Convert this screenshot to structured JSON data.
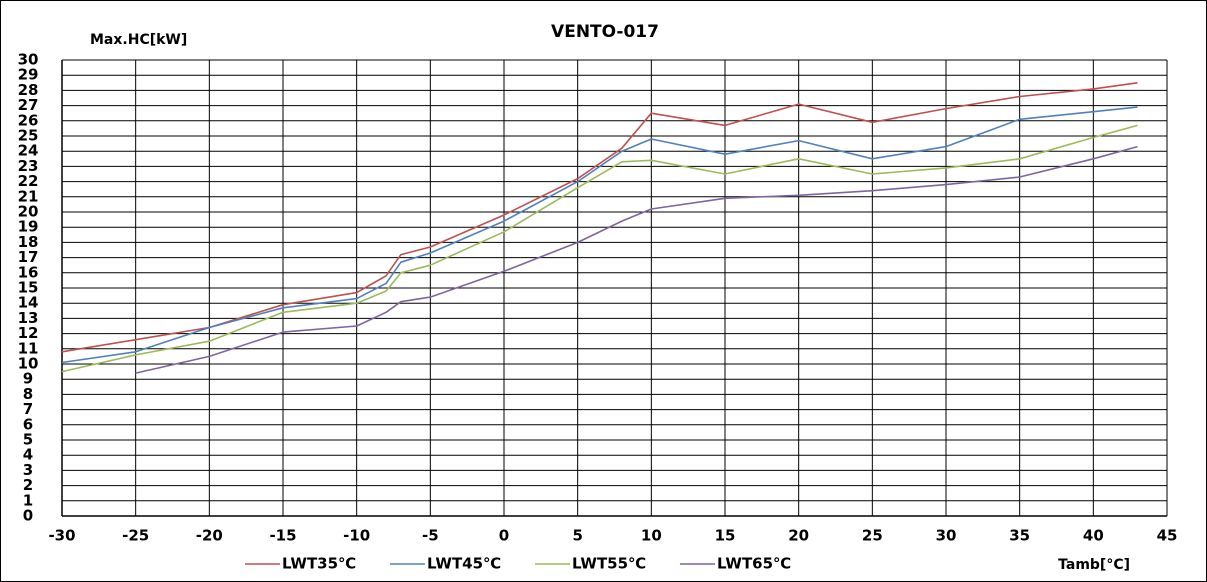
{
  "chart_data": {
    "type": "line",
    "title": "VENTO-017",
    "y_label": "Max.HC[kW]",
    "x_label": "Tamb[°C]",
    "x": [
      -30,
      -25,
      -20,
      -15,
      -10,
      -8,
      -7,
      -5,
      0,
      5,
      8,
      10,
      15,
      20,
      25,
      30,
      35,
      40,
      43
    ],
    "series": [
      {
        "name": "LWT35℃",
        "color": "#c0504d",
        "values": [
          10.8,
          11.6,
          12.4,
          13.9,
          14.7,
          15.8,
          17.2,
          17.7,
          19.8,
          22.2,
          24.2,
          26.5,
          25.7,
          27.1,
          25.9,
          26.8,
          27.6,
          28.1,
          28.5
        ]
      },
      {
        "name": "LWT45℃",
        "color": "#4f81bd",
        "values": [
          10.1,
          10.8,
          12.4,
          13.7,
          14.3,
          15.3,
          16.7,
          17.3,
          19.4,
          22.0,
          24.0,
          24.8,
          23.8,
          24.7,
          23.5,
          24.3,
          26.1,
          26.6,
          26.9
        ]
      },
      {
        "name": "LWT55℃",
        "color": "#9bbb59",
        "values": [
          9.5,
          10.6,
          11.5,
          13.4,
          14.0,
          14.8,
          16.0,
          16.5,
          18.7,
          21.6,
          23.3,
          23.4,
          22.5,
          23.5,
          22.5,
          22.9,
          23.5,
          24.9,
          25.7
        ]
      },
      {
        "name": "LWT65℃",
        "color": "#8064a2",
        "values": [
          null,
          9.4,
          10.5,
          12.1,
          12.5,
          13.4,
          14.1,
          14.4,
          16.1,
          18.0,
          19.4,
          20.2,
          20.9,
          21.1,
          21.4,
          21.8,
          22.3,
          23.5,
          24.3
        ]
      }
    ],
    "xlim": [
      -30,
      45
    ],
    "xticks": [
      -30,
      -25,
      -20,
      -15,
      -10,
      -5,
      0,
      5,
      10,
      15,
      20,
      25,
      30,
      35,
      40,
      45
    ],
    "ylim": [
      0,
      30
    ],
    "yticks": [
      0,
      1,
      2,
      3,
      4,
      5,
      6,
      7,
      8,
      9,
      10,
      11,
      12,
      13,
      14,
      15,
      16,
      17,
      18,
      19,
      20,
      21,
      22,
      23,
      24,
      25,
      26,
      27,
      28,
      29,
      30
    ],
    "grid": true,
    "legend": "bottom"
  }
}
